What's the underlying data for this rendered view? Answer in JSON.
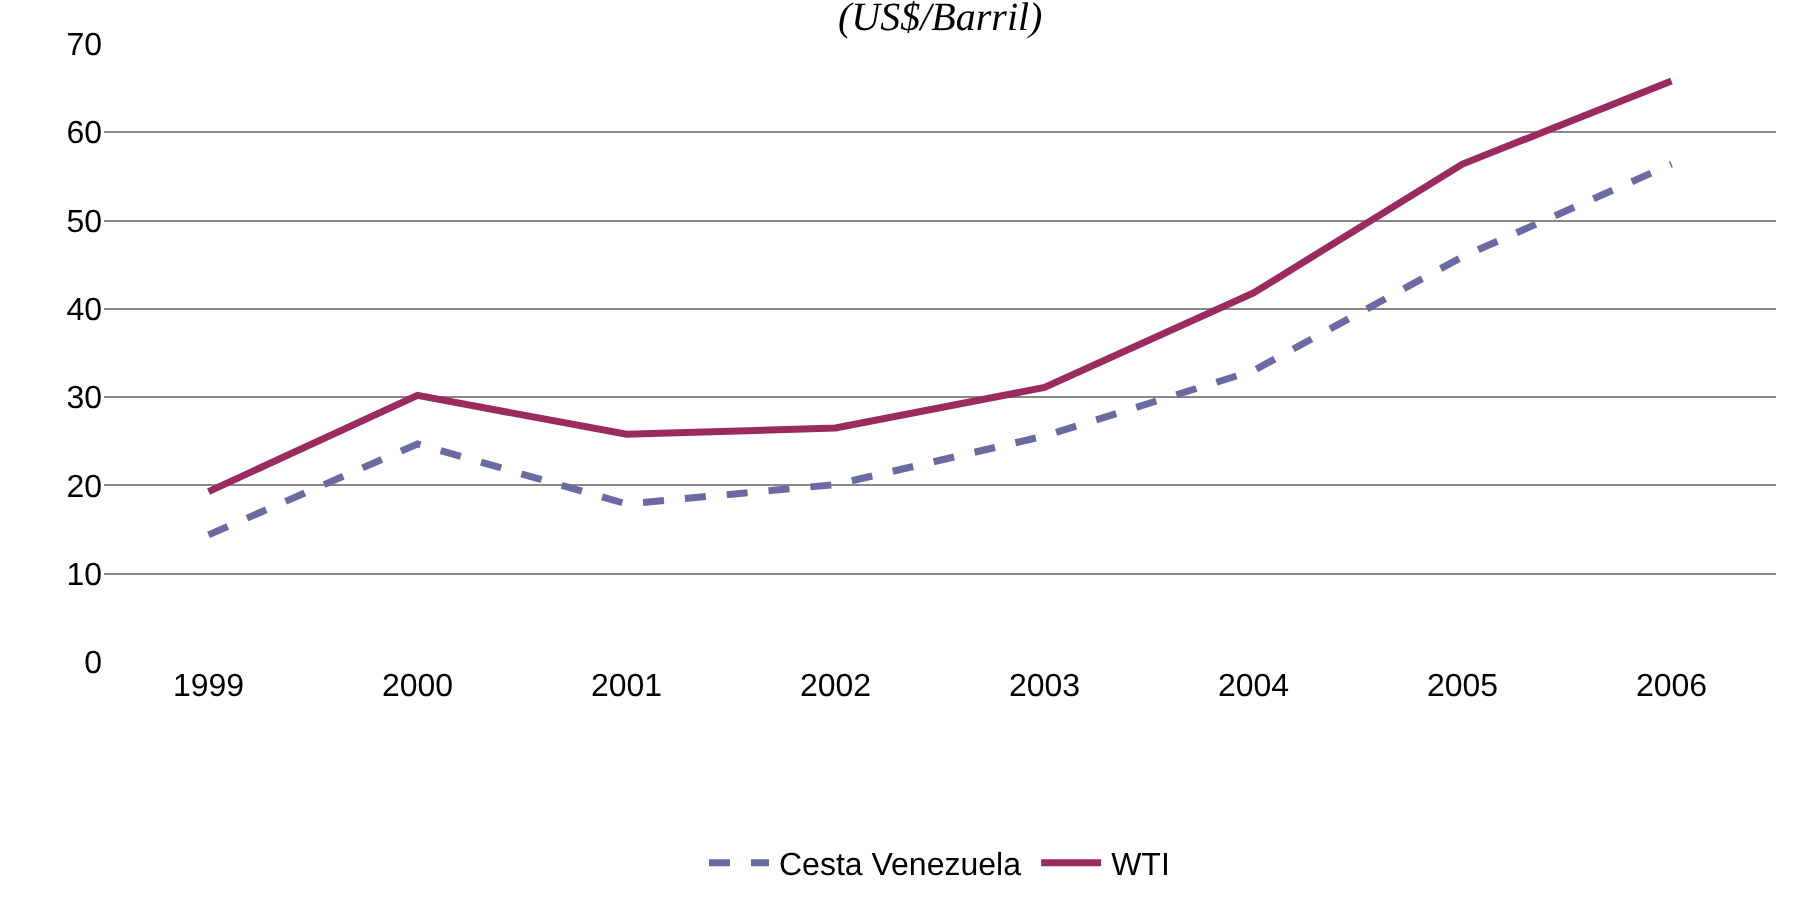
{
  "chart_data": {
    "type": "line",
    "subtitle": "(US$/Barril)",
    "categories": [
      "1999",
      "2000",
      "2001",
      "2002",
      "2003",
      "2004",
      "2005",
      "2006"
    ],
    "series": [
      {
        "name": "Cesta Venezuela",
        "color": "#6b6ba3",
        "line_style": "dashed",
        "values": [
          14.4,
          24.7,
          17.9,
          20.1,
          25.6,
          33.0,
          45.9,
          56.4
        ]
      },
      {
        "name": "WTI",
        "color": "#9b2b5e",
        "line_style": "solid",
        "values": [
          19.3,
          30.2,
          25.8,
          26.5,
          31.1,
          41.8,
          56.4,
          65.8
        ]
      }
    ],
    "ylim": [
      0,
      70
    ],
    "yticks": [
      0,
      10,
      20,
      30,
      40,
      50,
      60,
      70
    ],
    "grid": "y",
    "legend": "bottom",
    "marker": "none"
  }
}
